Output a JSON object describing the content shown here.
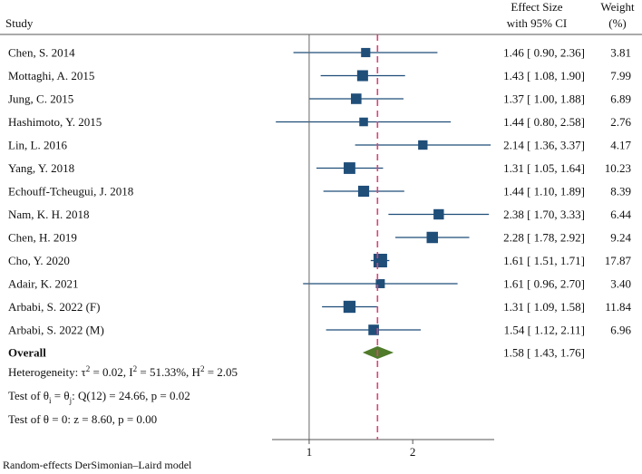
{
  "chart_data": {
    "type": "forest",
    "headers": {
      "study": "Study",
      "effect_line1": "Effect Size",
      "effect_line2": "with 95% CI",
      "weight_line1": "Weight",
      "weight_line2": "(%)"
    },
    "studies": [
      {
        "name": "Chen, S. 2014",
        "es": 1.46,
        "lo": 0.9,
        "hi": 2.36,
        "ci_text": "1.46 [ 0.90,  2.36]",
        "weight": 3.81,
        "weight_text": "3.81"
      },
      {
        "name": "Mottaghi, A. 2015",
        "es": 1.43,
        "lo": 1.08,
        "hi": 1.9,
        "ci_text": "1.43 [ 1.08,  1.90]",
        "weight": 7.99,
        "weight_text": "7.99"
      },
      {
        "name": "Jung, C. 2015",
        "es": 1.37,
        "lo": 1.0,
        "hi": 1.88,
        "ci_text": "1.37 [ 1.00,  1.88]",
        "weight": 6.89,
        "weight_text": "6.89"
      },
      {
        "name": "Hashimoto, Y. 2015",
        "es": 1.44,
        "lo": 0.8,
        "hi": 2.58,
        "ci_text": "1.44 [ 0.80,  2.58]",
        "weight": 2.76,
        "weight_text": "2.76"
      },
      {
        "name": "Lin, L. 2016",
        "es": 2.14,
        "lo": 1.36,
        "hi": 3.37,
        "ci_text": "2.14 [ 1.36,  3.37]",
        "weight": 4.17,
        "weight_text": "4.17"
      },
      {
        "name": "Yang, Y. 2018",
        "es": 1.31,
        "lo": 1.05,
        "hi": 1.64,
        "ci_text": "1.31 [ 1.05,  1.64]",
        "weight": 10.23,
        "weight_text": "10.23"
      },
      {
        "name": "Echouff-Tcheugui, J. 2018",
        "es": 1.44,
        "lo": 1.1,
        "hi": 1.89,
        "ci_text": "1.44 [ 1.10,  1.89]",
        "weight": 8.39,
        "weight_text": "8.39"
      },
      {
        "name": "Nam, K. H. 2018",
        "es": 2.38,
        "lo": 1.7,
        "hi": 3.33,
        "ci_text": "2.38 [ 1.70,  3.33]",
        "weight": 6.44,
        "weight_text": "6.44"
      },
      {
        "name": "Chen, H. 2019",
        "es": 2.28,
        "lo": 1.78,
        "hi": 2.92,
        "ci_text": "2.28 [ 1.78,  2.92]",
        "weight": 9.24,
        "weight_text": "9.24"
      },
      {
        "name": "Cho, Y. 2020",
        "es": 1.61,
        "lo": 1.51,
        "hi": 1.71,
        "ci_text": "1.61 [ 1.51,  1.71]",
        "weight": 17.87,
        "weight_text": "17.87"
      },
      {
        "name": "Adair, K. 2021",
        "es": 1.61,
        "lo": 0.96,
        "hi": 2.7,
        "ci_text": "1.61 [ 0.96,  2.70]",
        "weight": 3.4,
        "weight_text": "3.40"
      },
      {
        "name": "Arbabi, S. 2022 (F)",
        "es": 1.31,
        "lo": 1.09,
        "hi": 1.58,
        "ci_text": "1.31 [ 1.09,  1.58]",
        "weight": 11.84,
        "weight_text": "11.84"
      },
      {
        "name": "Arbabi, S. 2022 (M)",
        "es": 1.54,
        "lo": 1.12,
        "hi": 2.11,
        "ci_text": "1.54 [ 1.12,  2.11]",
        "weight": 6.96,
        "weight_text": "6.96"
      }
    ],
    "overall": {
      "name": "Overall",
      "es": 1.58,
      "lo": 1.43,
      "hi": 1.76,
      "ci_text": "1.58 [ 1.43,  1.76]"
    },
    "stats": {
      "heterogeneity": {
        "prefix": "Heterogeneity: τ",
        "tau_sup": "2",
        "mid1": " = 0.02, I",
        "i_sup": "2",
        "mid2": " = 51.33%, H",
        "h_sup": "2",
        "end": " = 2.05"
      },
      "test_equal": {
        "prefix": "Test of θ",
        "sub1": "i",
        "mid": " = θ",
        "sub2": "j",
        "end": ": Q(12) = 24.66, p = 0.02"
      },
      "test_zero": "Test of θ = 0: z = 8.60, p = 0.00"
    },
    "x_axis": {
      "scale": "log",
      "ticks": [
        1,
        2
      ],
      "tick_labels": [
        "1",
        "2"
      ],
      "range": [
        0.78,
        3.45
      ]
    },
    "null_line": 1,
    "footnote": "Random-effects DerSimonian–Laird model",
    "colors": {
      "marker": "#1f4e79",
      "diamond": "#4f7b2a",
      "overall_line": "#d6457a",
      "line": "#333333"
    }
  }
}
